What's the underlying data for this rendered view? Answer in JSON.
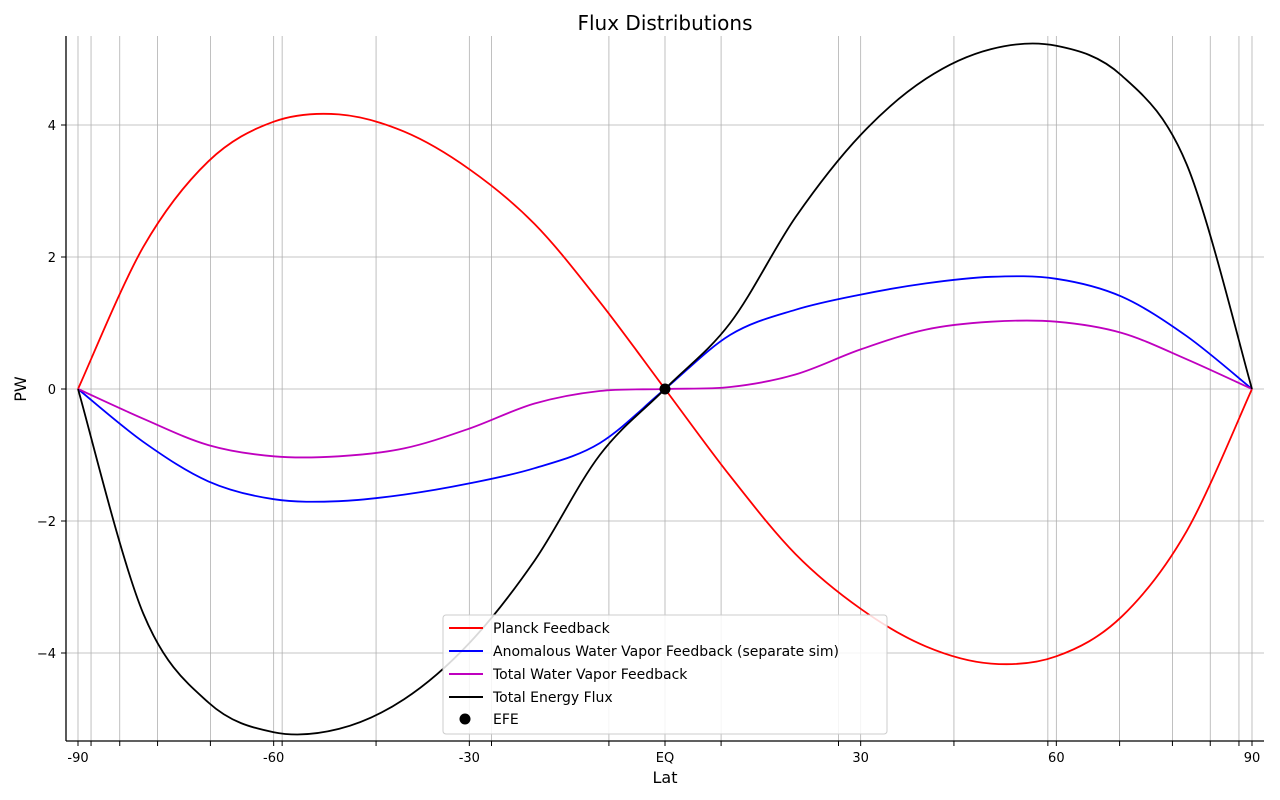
{
  "chart_data": {
    "type": "line",
    "title": "Flux Distributions",
    "xlabel": "Lat",
    "ylabel": "PW",
    "xlim": [
      -90,
      90
    ],
    "ylim": [
      -5.35,
      5.35
    ],
    "x_ticks_major": [
      {
        "value": -90,
        "label": "-90"
      },
      {
        "value": -60,
        "label": "-60"
      },
      {
        "value": -30,
        "label": "-30"
      },
      {
        "value": 0,
        "label": "EQ"
      },
      {
        "value": 30,
        "label": "30"
      },
      {
        "value": 60,
        "label": "60"
      },
      {
        "value": 90,
        "label": "90"
      }
    ],
    "x_ticks_minor": [
      -88.0,
      -83.6,
      -77.8,
      -69.7,
      -58.7,
      -44.3,
      -26.6,
      -8.6,
      8.6,
      26.6,
      44.3,
      58.7,
      69.7,
      77.8,
      83.6,
      88.0
    ],
    "y_ticks": [
      {
        "value": -4,
        "label": "−4"
      },
      {
        "value": -2,
        "label": "−2"
      },
      {
        "value": 0,
        "label": "0"
      },
      {
        "value": 2,
        "label": "2"
      },
      {
        "value": 4,
        "label": "4"
      }
    ],
    "grid": true,
    "legend_position": "lower-center",
    "x": [
      -90,
      -80,
      -70,
      -60,
      -50,
      -40,
      -30,
      -20,
      -10,
      0,
      10,
      20,
      30,
      40,
      50,
      60,
      70,
      80,
      90
    ],
    "series": [
      {
        "name": "Planck Feedback",
        "color": "#ff0000",
        "values": [
          0.0,
          2.15,
          3.45,
          4.05,
          4.16,
          3.9,
          3.33,
          2.5,
          1.32,
          0.0,
          -1.32,
          -2.5,
          -3.33,
          -3.9,
          -4.16,
          -4.05,
          -3.45,
          -2.15,
          0.0
        ]
      },
      {
        "name": "Anomalous Water Vapor Feedback (separate sim)",
        "color": "#0000ff",
        "values": [
          0.0,
          -0.8,
          -1.4,
          -1.67,
          -1.7,
          -1.6,
          -1.43,
          -1.2,
          -0.82,
          0.0,
          0.82,
          1.2,
          1.43,
          1.6,
          1.7,
          1.67,
          1.4,
          0.8,
          0.0
        ]
      },
      {
        "name": "Total Water Vapor Feedback",
        "color": "#bf00bf",
        "values": [
          0.0,
          -0.45,
          -0.85,
          -1.02,
          -1.02,
          -0.9,
          -0.6,
          -0.22,
          -0.03,
          0.0,
          0.03,
          0.22,
          0.6,
          0.9,
          1.02,
          1.02,
          0.85,
          0.45,
          0.0
        ]
      },
      {
        "name": "Total Energy Flux",
        "color": "#000000",
        "values": [
          0.0,
          -3.4,
          -4.75,
          -5.2,
          -5.15,
          -4.7,
          -3.85,
          -2.6,
          -1.0,
          0.0,
          1.0,
          2.6,
          3.85,
          4.7,
          5.15,
          5.2,
          4.75,
          3.4,
          0.0
        ]
      }
    ],
    "markers": [
      {
        "name": "EFE",
        "color": "#000000",
        "x": 0,
        "y": 0
      }
    ]
  }
}
